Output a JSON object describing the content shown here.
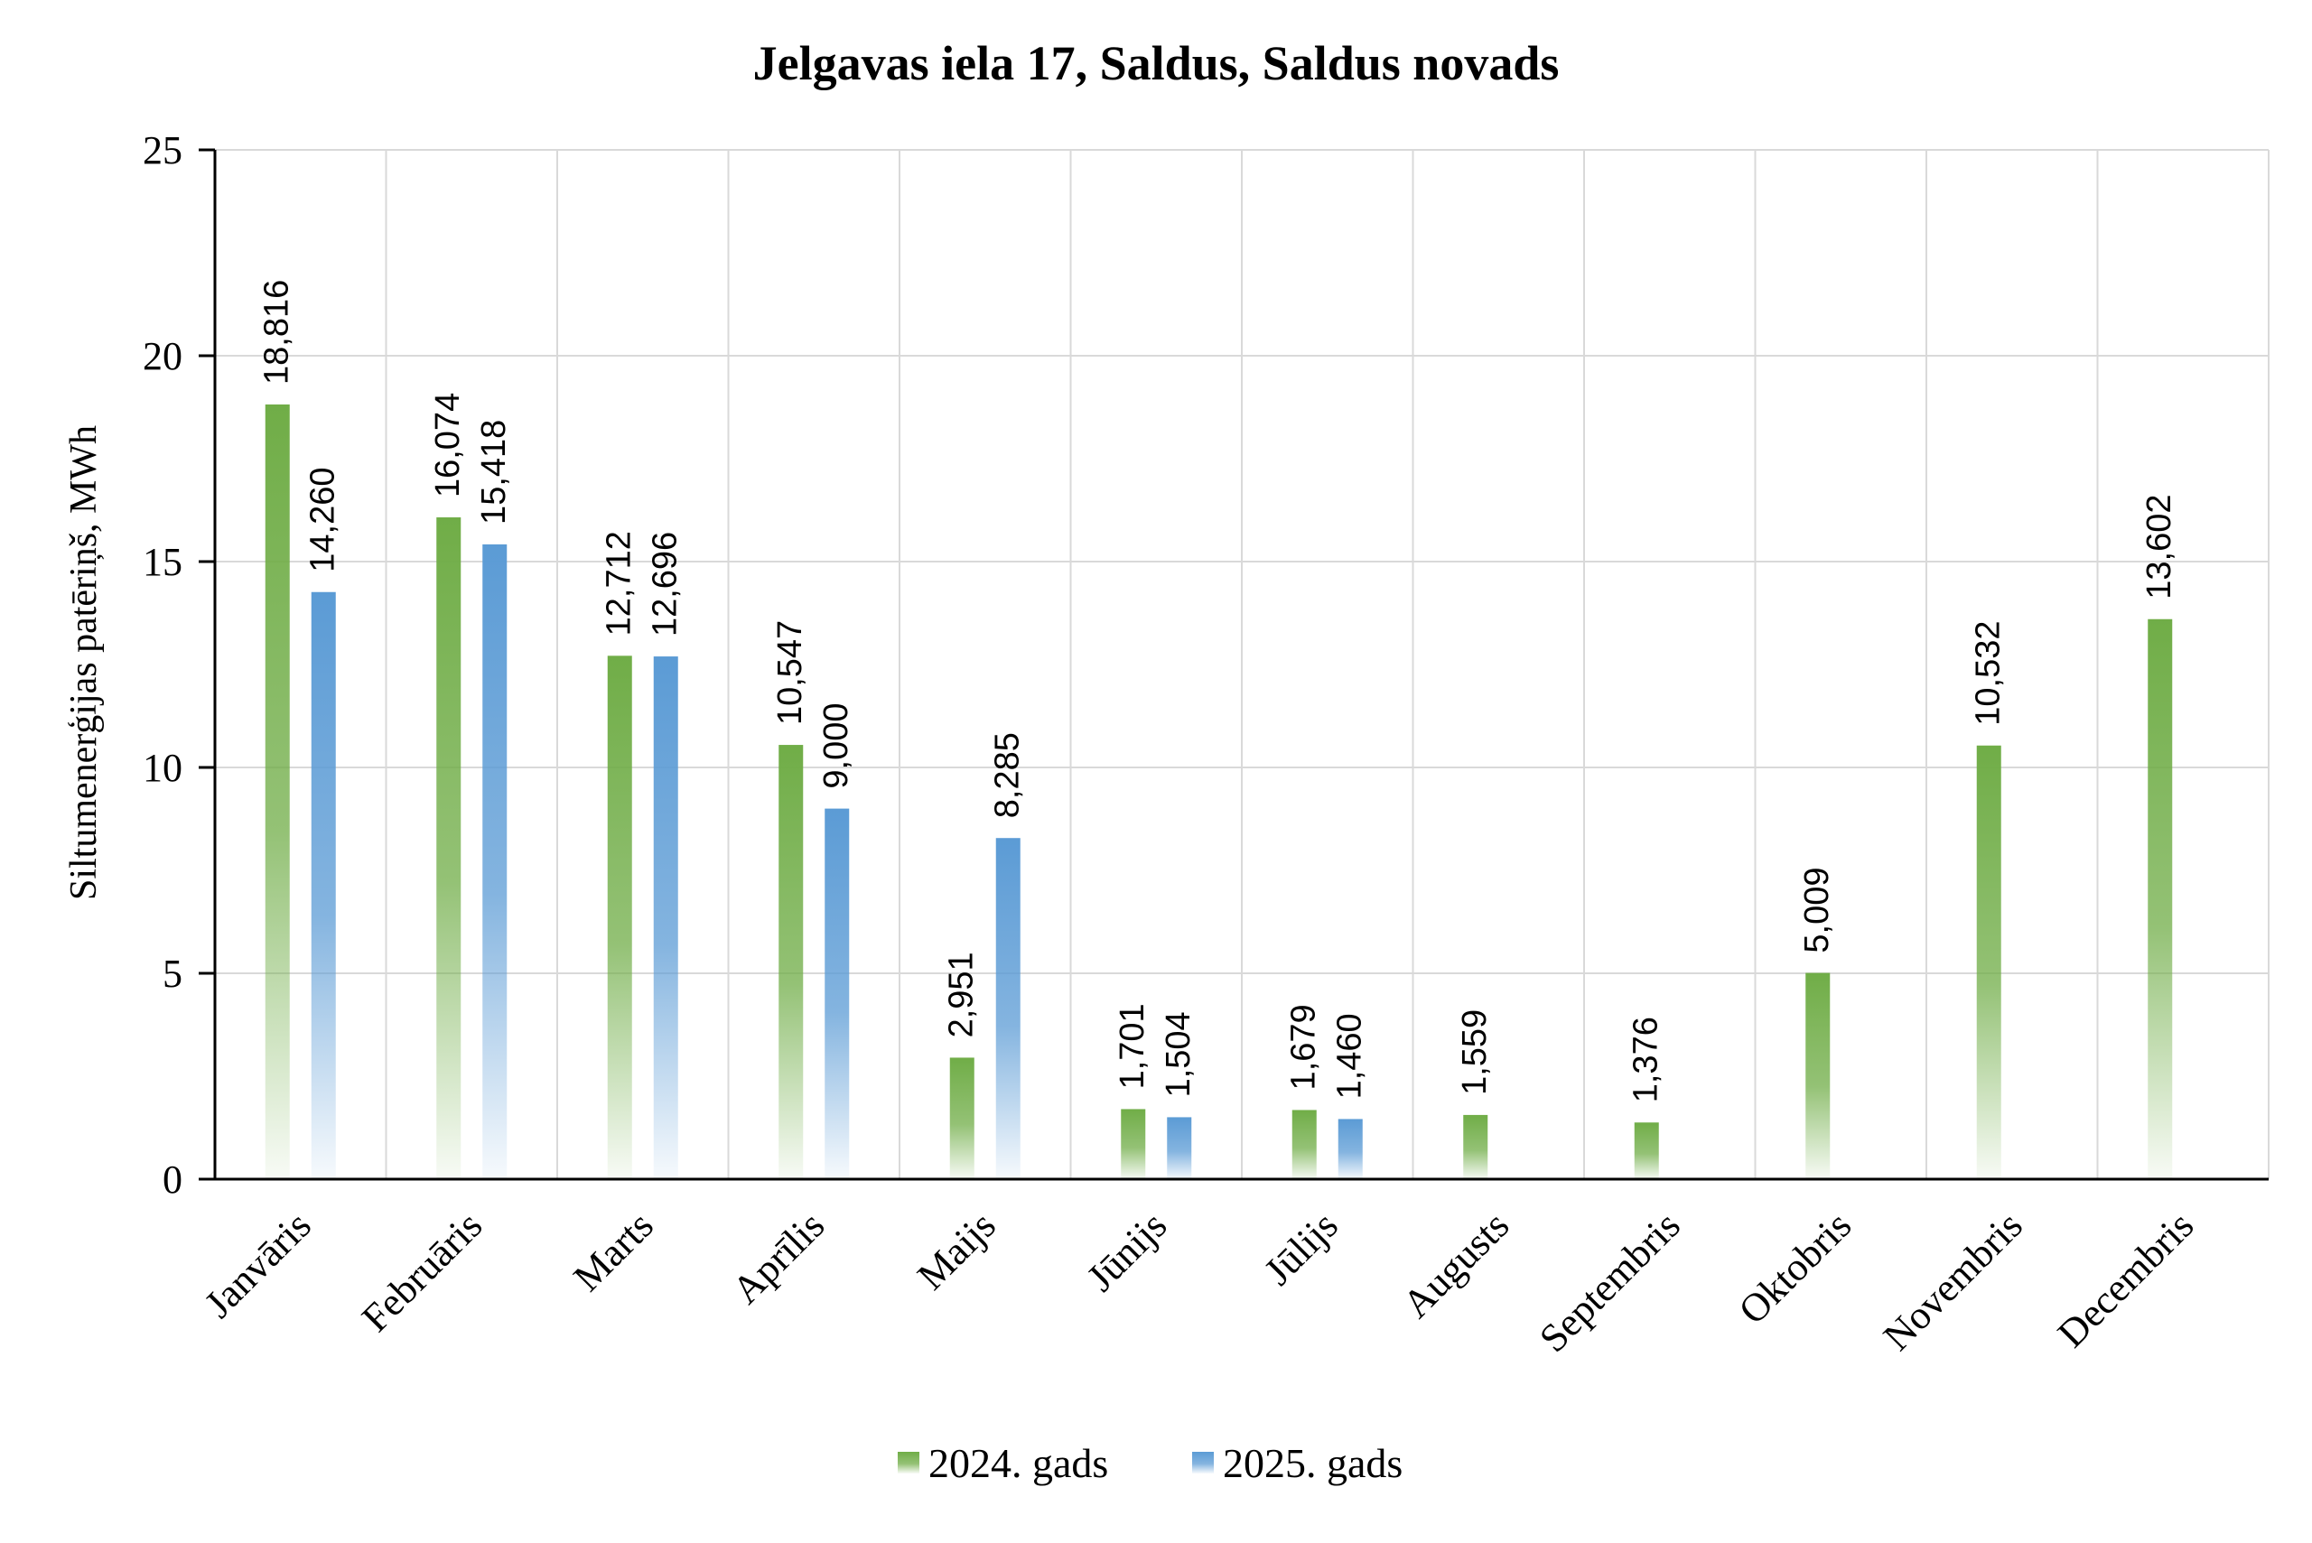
{
  "chart_data": {
    "type": "bar",
    "title": "Jelgavas iela 17, Saldus, Saldus novads",
    "xlabel": "",
    "ylabel": "Siltumenerģijas patēriņš, MWh",
    "ylim": [
      0,
      25
    ],
    "yticks": [
      0,
      5,
      10,
      15,
      20,
      25
    ],
    "grid": true,
    "legend_position": "bottom",
    "categories": [
      "Janvāris",
      "Februāris",
      "Marts",
      "Aprīlis",
      "Maijs",
      "Jūnijs",
      "Jūlijs",
      "Augusts",
      "Septembris",
      "Oktobris",
      "Novembris",
      "Decembris"
    ],
    "series": [
      {
        "name": "2024. gads",
        "color": "#70ad47",
        "values": [
          18.816,
          16.074,
          12.712,
          10.547,
          2.951,
          1.701,
          1.679,
          1.559,
          1.376,
          5.009,
          10.532,
          13.602
        ],
        "labels": [
          "18,816",
          "16,074",
          "12,712",
          "10,547",
          "2,951",
          "1,701",
          "1,679",
          "1,559",
          "1,376",
          "5,009",
          "10,532",
          "13,602"
        ]
      },
      {
        "name": "2025. gads",
        "color": "#5b9bd5",
        "values": [
          14.26,
          15.418,
          12.696,
          9.0,
          8.285,
          1.504,
          1.46,
          null,
          null,
          null,
          null,
          null
        ],
        "labels": [
          "14,260",
          "15,418",
          "12,696",
          "9,000",
          "8,285",
          "1,504",
          "1,460",
          null,
          null,
          null,
          null,
          null
        ]
      }
    ]
  }
}
